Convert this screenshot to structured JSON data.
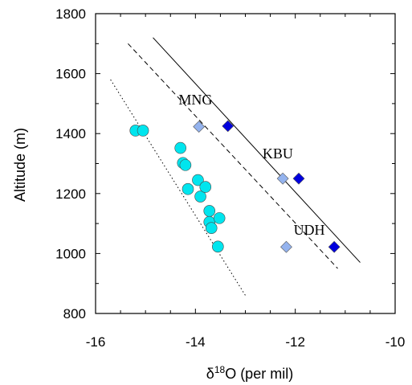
{
  "chart_data": {
    "type": "scatter",
    "xlabel": "δ18O (per mil)",
    "xlabel_parts": {
      "base": "δ",
      "sup": "18",
      "rest": "O (per mil)"
    },
    "ylabel": "Altitude (m)",
    "xlim": [
      -16,
      -10
    ],
    "ylim": [
      800,
      1800
    ],
    "x_ticks": [
      -16,
      -14,
      -12,
      -10
    ],
    "y_ticks": [
      800,
      1000,
      1200,
      1400,
      1600,
      1800
    ],
    "grid": false,
    "series": [
      {
        "marker": "circle",
        "color": "#00e5ee",
        "points": [
          [
            -15.2,
            1410
          ],
          [
            -15.05,
            1410
          ],
          [
            -14.3,
            1352
          ],
          [
            -14.25,
            1302
          ],
          [
            -14.2,
            1295
          ],
          [
            -14.15,
            1215
          ],
          [
            -13.95,
            1245
          ],
          [
            -13.9,
            1190
          ],
          [
            -13.8,
            1222
          ],
          [
            -13.72,
            1142
          ],
          [
            -13.72,
            1105
          ],
          [
            -13.68,
            1085
          ],
          [
            -13.52,
            1118
          ],
          [
            -13.55,
            1023
          ]
        ]
      },
      {
        "marker": "diamond",
        "color": "#94b3ee",
        "points": [
          [
            -13.93,
            1423
          ],
          [
            -12.25,
            1250
          ],
          [
            -12.18,
            1022
          ]
        ]
      },
      {
        "marker": "diamond",
        "color": "#0000dd",
        "points": [
          [
            -13.35,
            1425
          ],
          [
            -11.93,
            1250
          ],
          [
            -11.22,
            1022
          ]
        ]
      }
    ],
    "lines": [
      {
        "style": "dotted",
        "from": [
          -15.7,
          1580
        ],
        "to": [
          -12.98,
          855
        ]
      },
      {
        "style": "dashed",
        "from": [
          -15.35,
          1700
        ],
        "to": [
          -11.15,
          950
        ]
      },
      {
        "style": "solid",
        "from": [
          -14.85,
          1720
        ],
        "to": [
          -10.7,
          970
        ]
      }
    ],
    "annotations": [
      {
        "text": "MNG",
        "x": -14.0,
        "y": 1497
      },
      {
        "text": "KBU",
        "x": -12.35,
        "y": 1317
      },
      {
        "text": "UDH",
        "x": -11.72,
        "y": 1063
      }
    ]
  }
}
